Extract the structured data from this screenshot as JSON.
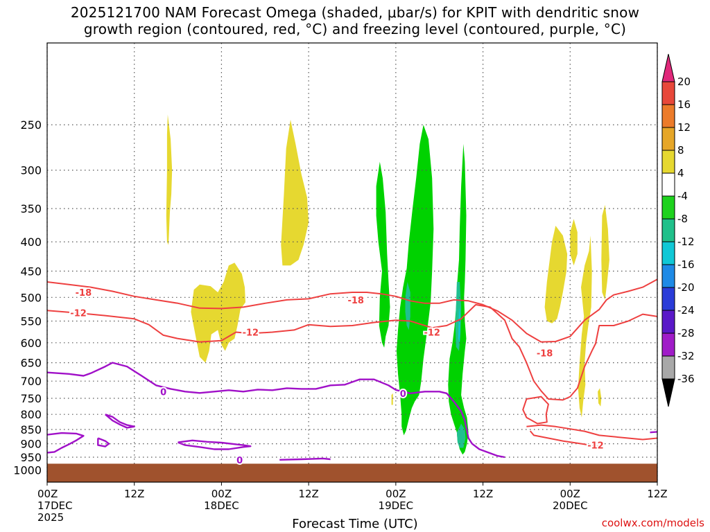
{
  "title_line1": "2025121700 NAM Forecast Omega (shaded, μbar/s) for KPIT with dendritic snow",
  "title_line2": "growth region (contoured, red, °C) and freezing level (contoured, purple, °C)",
  "credit": "coolwx.com/models",
  "chart_data": {
    "type": "time-height cross section",
    "title": "2025121700 NAM Forecast Omega (shaded, μbar/s) for KPIT with dendritic snow growth region (contoured, red, °C) and freezing level (contoured, purple, °C)",
    "xlabel": "Forecast Time (UTC)",
    "ylabel": "",
    "x_range_hours": [
      0,
      84
    ],
    "y_range_hpa": [
      1050,
      180
    ],
    "pressure_levels": [
      250,
      300,
      350,
      400,
      450,
      500,
      550,
      600,
      650,
      700,
      750,
      800,
      850,
      900,
      950,
      1000
    ],
    "x_ticks": [
      {
        "hour": 0,
        "lines": [
          "00Z",
          "17DEC",
          "2025"
        ]
      },
      {
        "hour": 12,
        "lines": [
          "12Z"
        ]
      },
      {
        "hour": 24,
        "lines": [
          "00Z",
          "18DEC"
        ]
      },
      {
        "hour": 36,
        "lines": [
          "12Z"
        ]
      },
      {
        "hour": 48,
        "lines": [
          "00Z",
          "19DEC"
        ]
      },
      {
        "hour": 60,
        "lines": [
          "12Z"
        ]
      },
      {
        "hour": 72,
        "lines": [
          "00Z",
          "20DEC"
        ]
      },
      {
        "hour": 84,
        "lines": [
          "12Z"
        ]
      }
    ],
    "colorbar": {
      "labels": [
        "20",
        "16",
        "12",
        "8",
        "4",
        "-4",
        "-8",
        "-12",
        "-16",
        "-20",
        "-24",
        "-28",
        "-32",
        "-36"
      ],
      "colors": [
        "#e0287a",
        "#e8483a",
        "#ec7b2a",
        "#e6a628",
        "#e6d830",
        "#ffffff",
        "#1ed21e",
        "#20c08a",
        "#10c8d6",
        "#1e8ae6",
        "#2a3cd8",
        "#5a18c8",
        "#a01cc8",
        "#a8a8a8",
        "#000000"
      ]
    },
    "shading_colors": {
      "yellow": "#e6d830",
      "green": "#00d200",
      "teal": "#20c090",
      "cyan": "#10c8d6",
      "terrain": "#a0522d"
    },
    "contour_colors": {
      "dgz": "#ee4040",
      "freezing": "#a010c8"
    },
    "contour_labels": [
      {
        "text": "-18",
        "hour": 5,
        "p": 490
      },
      {
        "text": "-12",
        "hour": 4.3,
        "p": 532
      },
      {
        "text": "-12",
        "hour": 28,
        "p": 575
      },
      {
        "text": "-18",
        "hour": 42.5,
        "p": 505
      },
      {
        "text": "-12",
        "hour": 53,
        "p": 575
      },
      {
        "text": "-18",
        "hour": 68.5,
        "p": 625
      },
      {
        "text": "-12",
        "hour": 75.5,
        "p": 905
      },
      {
        "text": "0",
        "hour": 16,
        "p": 730
      },
      {
        "text": "0",
        "hour": 26.5,
        "p": 960
      },
      {
        "text": "0",
        "hour": 49,
        "p": 735
      }
    ],
    "terrain_surface_hpa": 975,
    "dgz_contours": [
      {
        "name": "-18 upper",
        "pts": [
          [
            0,
            470
          ],
          [
            3,
            475
          ],
          [
            6,
            480
          ],
          [
            9,
            488
          ],
          [
            12,
            498
          ],
          [
            15,
            505
          ],
          [
            18,
            512
          ],
          [
            21,
            522
          ],
          [
            24,
            523
          ],
          [
            27,
            520
          ],
          [
            30,
            512
          ],
          [
            33,
            505
          ],
          [
            36,
            503
          ],
          [
            39,
            493
          ],
          [
            42,
            490
          ],
          [
            44,
            490
          ],
          [
            46,
            493
          ],
          [
            48,
            498
          ],
          [
            50,
            507
          ],
          [
            52,
            512
          ],
          [
            54,
            512
          ],
          [
            56,
            505
          ],
          [
            58,
            507
          ],
          [
            60,
            515
          ],
          [
            62,
            528
          ],
          [
            64,
            548
          ],
          [
            66,
            578
          ],
          [
            68,
            598
          ],
          [
            70,
            597
          ],
          [
            72,
            585
          ],
          [
            74,
            548
          ],
          [
            76,
            525
          ],
          [
            77,
            505
          ],
          [
            78,
            495
          ],
          [
            80,
            488
          ],
          [
            82,
            480
          ],
          [
            84,
            465
          ]
        ]
      },
      {
        "name": "-12 lower",
        "pts": [
          [
            0,
            527
          ],
          [
            4,
            532
          ],
          [
            8,
            538
          ],
          [
            12,
            545
          ],
          [
            14,
            558
          ],
          [
            16,
            582
          ],
          [
            18,
            590
          ],
          [
            21,
            598
          ],
          [
            24,
            595
          ],
          [
            26,
            575
          ],
          [
            28,
            578
          ],
          [
            31,
            575
          ],
          [
            34,
            570
          ],
          [
            36,
            558
          ],
          [
            39,
            562
          ],
          [
            42,
            560
          ],
          [
            45,
            553
          ],
          [
            48,
            548
          ],
          [
            50,
            550
          ],
          [
            53,
            565
          ],
          [
            55,
            560
          ],
          [
            57,
            545
          ],
          [
            59,
            515
          ],
          [
            61,
            520
          ],
          [
            63,
            548
          ],
          [
            64,
            590
          ],
          [
            65,
            610
          ],
          [
            66,
            650
          ],
          [
            67,
            700
          ],
          [
            68,
            728
          ],
          [
            69,
            752
          ],
          [
            71,
            755
          ],
          [
            72,
            745
          ],
          [
            73,
            720
          ],
          [
            74,
            660
          ],
          [
            75,
            620
          ],
          [
            75.5,
            602
          ],
          [
            76,
            560
          ],
          [
            78,
            560
          ],
          [
            80,
            550
          ],
          [
            82,
            535
          ],
          [
            84,
            540
          ]
        ]
      },
      {
        "name": "-12 low loop",
        "pts": [
          [
            66,
            752
          ],
          [
            68,
            745
          ],
          [
            69,
            768
          ],
          [
            68.7,
            800
          ],
          [
            68.8,
            825
          ],
          [
            67.5,
            830
          ],
          [
            66,
            810
          ],
          [
            65.5,
            785
          ],
          [
            66,
            752
          ]
        ]
      },
      {
        "name": "-12 low tail",
        "pts": [
          [
            66,
            840
          ],
          [
            68,
            835
          ],
          [
            70,
            840
          ],
          [
            72,
            848
          ],
          [
            74,
            856
          ],
          [
            76,
            870
          ],
          [
            80,
            880
          ],
          [
            82,
            885
          ],
          [
            84,
            880
          ]
        ]
      },
      {
        "name": "-12 bottom",
        "pts": [
          [
            66.5,
            855
          ],
          [
            67,
            870
          ],
          [
            69,
            880
          ],
          [
            71,
            890
          ],
          [
            73,
            898
          ],
          [
            75,
            906
          ],
          [
            76.5,
            907
          ]
        ]
      }
    ],
    "freezing_contours": [
      {
        "name": "0 main",
        "pts": [
          [
            0,
            676
          ],
          [
            3,
            680
          ],
          [
            5,
            685
          ],
          [
            6,
            678
          ],
          [
            8,
            660
          ],
          [
            9,
            650
          ],
          [
            11,
            660
          ],
          [
            13,
            685
          ],
          [
            15,
            712
          ],
          [
            17,
            722
          ],
          [
            19,
            730
          ],
          [
            21,
            734
          ],
          [
            23,
            730
          ],
          [
            25,
            726
          ],
          [
            27,
            730
          ],
          [
            29,
            724
          ],
          [
            31,
            726
          ],
          [
            33,
            720
          ],
          [
            35,
            722
          ],
          [
            37,
            722
          ],
          [
            39,
            712
          ],
          [
            41,
            710
          ],
          [
            43,
            695
          ],
          [
            45,
            695
          ],
          [
            47,
            712
          ],
          [
            48,
            725
          ],
          [
            50,
            735
          ],
          [
            52,
            730
          ],
          [
            54,
            730
          ],
          [
            55,
            735
          ],
          [
            56,
            760
          ],
          [
            57,
            790
          ],
          [
            57.5,
            820
          ],
          [
            57.8,
            855
          ],
          [
            58,
            880
          ],
          [
            58.5,
            900
          ],
          [
            59.5,
            920
          ],
          [
            61,
            935
          ],
          [
            62,
            945
          ],
          [
            63,
            950
          ]
        ]
      },
      {
        "name": "0 low loop",
        "pts": [
          [
            18,
            895
          ],
          [
            20,
            888
          ],
          [
            22,
            893
          ],
          [
            24,
            896
          ],
          [
            26,
            902
          ],
          [
            27,
            905
          ],
          [
            28,
            909
          ],
          [
            27,
            912
          ],
          [
            25,
            920
          ],
          [
            23,
            920
          ],
          [
            21,
            912
          ],
          [
            19,
            905
          ],
          [
            18,
            895
          ]
        ]
      },
      {
        "name": "0 left low",
        "pts": [
          [
            0,
            868
          ],
          [
            2,
            862
          ],
          [
            4,
            864
          ],
          [
            5,
            872
          ],
          [
            4,
            888
          ],
          [
            3,
            902
          ],
          [
            2,
            915
          ],
          [
            1,
            930
          ],
          [
            0,
            933
          ]
        ]
      },
      {
        "name": "0 small1",
        "pts": [
          [
            7,
            880
          ],
          [
            8,
            890
          ],
          [
            8.5,
            900
          ],
          [
            8,
            910
          ],
          [
            7,
            905
          ],
          [
            7,
            890
          ],
          [
            7,
            880
          ]
        ]
      },
      {
        "name": "0 small2",
        "pts": [
          [
            8,
            800
          ],
          [
            9,
            808
          ],
          [
            10,
            825
          ],
          [
            11,
            835
          ],
          [
            12,
            840
          ],
          [
            11,
            844
          ],
          [
            10,
            833
          ],
          [
            9,
            820
          ],
          [
            8,
            800
          ]
        ]
      },
      {
        "name": "0 surface",
        "pts": [
          [
            32,
            960
          ],
          [
            35,
            958
          ],
          [
            38,
            955
          ],
          [
            39,
            958
          ]
        ]
      },
      {
        "name": "0 right",
        "pts": [
          [
            83,
            860
          ],
          [
            84,
            858
          ]
        ]
      }
    ]
  }
}
